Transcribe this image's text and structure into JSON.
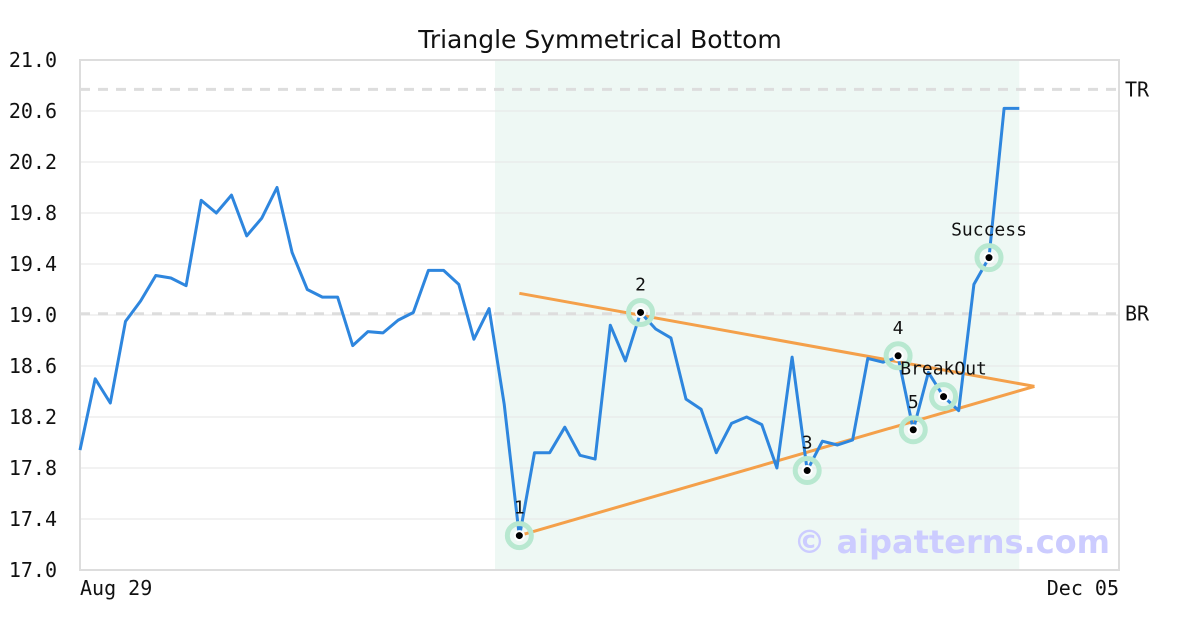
{
  "chart_data": {
    "type": "line",
    "title": "Triangle Symmetrical Bottom",
    "xlabel": "",
    "ylabel": "",
    "ylim": [
      17.0,
      21.0
    ],
    "yticks": [
      "17.0",
      "17.4",
      "17.8",
      "18.2",
      "18.6",
      "19.0",
      "19.4",
      "19.8",
      "20.2",
      "20.6",
      "21.0"
    ],
    "x_start_label": "Aug 29",
    "x_end_label": "Dec 05",
    "grid": true,
    "series": [
      {
        "color": "#2e86de",
        "values": [
          17.94,
          18.5,
          18.31,
          18.95,
          19.11,
          19.31,
          19.29,
          19.23,
          19.9,
          19.8,
          19.94,
          19.62,
          19.76,
          20.0,
          19.49,
          19.2,
          19.14,
          19.14,
          18.76,
          18.87,
          18.86,
          18.96,
          19.02,
          19.35,
          19.35,
          19.24,
          18.81,
          19.05,
          18.3,
          17.26,
          17.92,
          17.92,
          18.12,
          17.9,
          17.87,
          18.92,
          18.64,
          19.02,
          18.89,
          18.82,
          18.34,
          18.26,
          17.92,
          18.15,
          18.2,
          18.14,
          17.8,
          18.67,
          17.78,
          18.01,
          17.98,
          18.02,
          18.66,
          18.63,
          18.67,
          18.1,
          18.55,
          18.36,
          18.25,
          19.24,
          19.45,
          20.62,
          20.62
        ]
      }
    ],
    "highlight_range": {
      "from_index": 27,
      "to_index": 62,
      "color": "#eef8f4"
    },
    "reference_levels": [
      {
        "label": "TR",
        "value": 20.77
      },
      {
        "label": "BR",
        "value": 19.01
      }
    ],
    "trendlines": [
      {
        "color": "#f4a04a",
        "from": {
          "index": 29,
          "value": 19.17
        },
        "to": {
          "index": 63,
          "value": 18.44
        }
      },
      {
        "color": "#f4a04a",
        "from": {
          "index": 29,
          "value": 17.27
        },
        "to": {
          "index": 63,
          "value": 18.44
        }
      }
    ],
    "points": [
      {
        "label": "1",
        "index": 29,
        "value": 17.27
      },
      {
        "label": "2",
        "index": 37,
        "value": 19.02
      },
      {
        "label": "3",
        "index": 48,
        "value": 17.78
      },
      {
        "label": "4",
        "index": 54,
        "value": 18.68
      },
      {
        "label": "5",
        "index": 55,
        "value": 18.1
      },
      {
        "label": "BreakOut",
        "index": 57,
        "value": 18.36
      },
      {
        "label": "Success",
        "index": 60,
        "value": 19.45
      }
    ],
    "watermark": "© aipatterns.com",
    "colors": {
      "line": "#2e86de",
      "trend": "#f4a04a",
      "highlight": "#eef8f4",
      "marker_ring": "#b8e8d0",
      "reference": "#dddddd",
      "grid": "#e6e6e6",
      "frame": "#dddddd"
    }
  }
}
